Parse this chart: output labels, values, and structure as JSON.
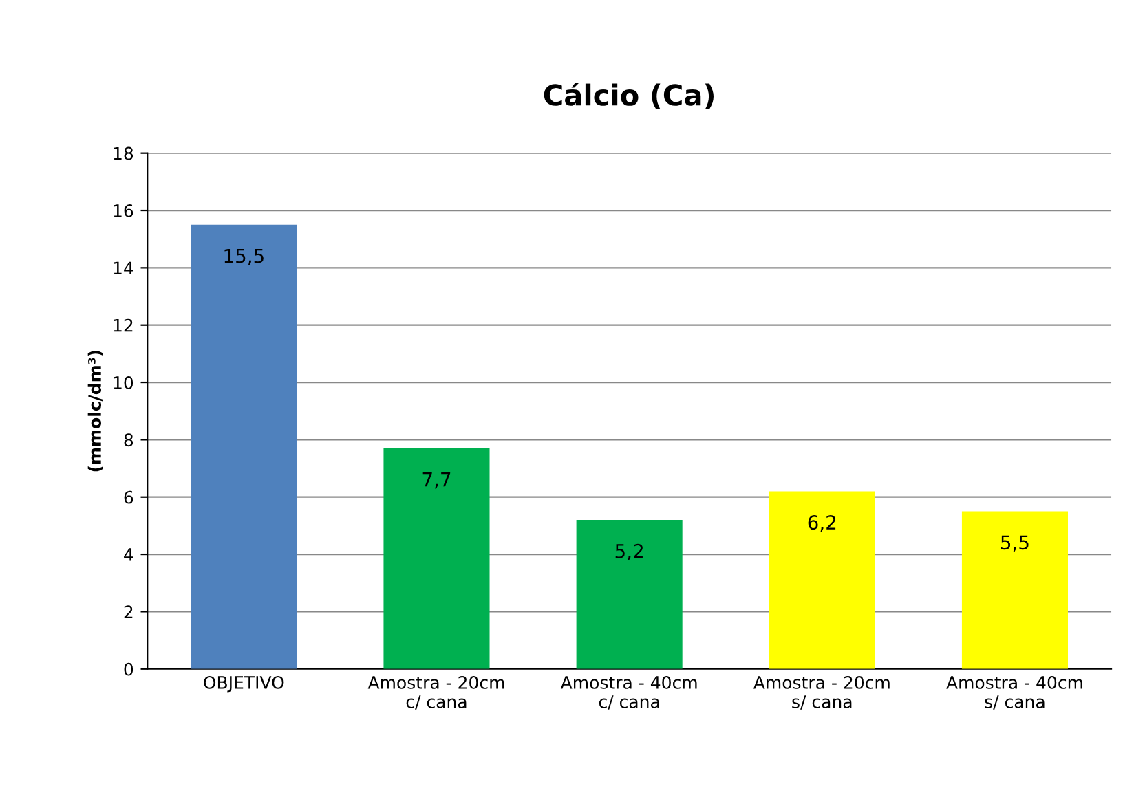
{
  "chart_data": {
    "type": "bar",
    "title": "Cálcio (Ca)",
    "ylabel": "(mmolc/dm³)",
    "categories": [
      "OBJETIVO",
      "Amostra - 20cm\nc/ cana",
      "Amostra - 40cm\nc/ cana",
      "Amostra - 20cm\ns/ cana",
      "Amostra - 40cm\ns/ cana"
    ],
    "values": [
      15.5,
      7.7,
      5.2,
      6.2,
      5.5
    ],
    "colors": [
      "#4f81bd",
      "#00b050",
      "#00b050",
      "#ffff00",
      "#ffff00"
    ],
    "value_labels": [
      "15,5",
      "7,7",
      "5,2",
      "6,2",
      "5,5"
    ],
    "ylim": [
      0,
      18
    ],
    "yticks": [
      0,
      2,
      4,
      6,
      8,
      10,
      12,
      14,
      16,
      18
    ],
    "grid": "y",
    "legend": false
  }
}
